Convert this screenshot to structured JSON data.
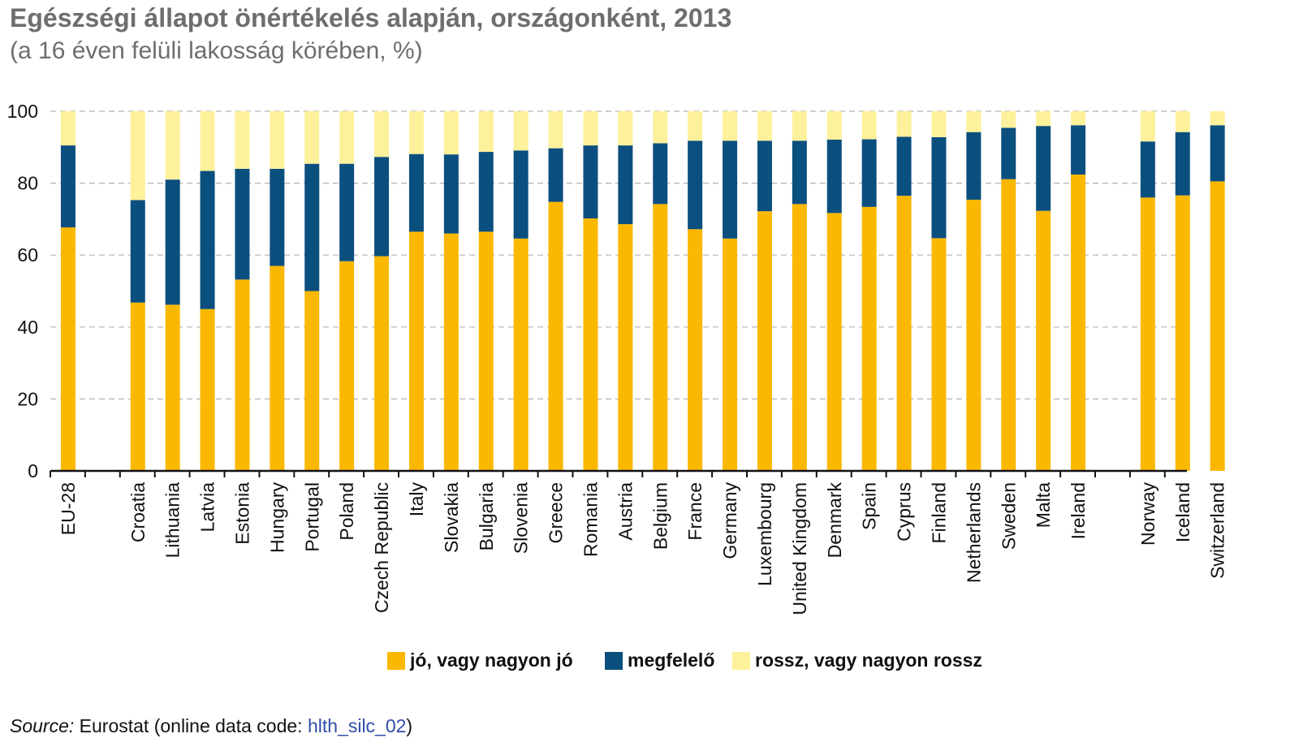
{
  "title": "Egészségi állapot önértékelés alapján, országonként, 2013",
  "subtitle": "(a 16 éven felüli lakosság körében, %)",
  "source": {
    "label": "Source:",
    "text": " Eurostat (online data code: ",
    "code": "hlth_silc_02",
    "close": ")"
  },
  "legend": [
    {
      "name": "jó, vagy nagyon jó",
      "color": "#fbb800"
    },
    {
      "name": "megfelelő",
      "color": "#0b4f7f"
    },
    {
      "name": "rossz, vagy nagyon rossz",
      "color": "#fef19b"
    }
  ],
  "chart_data": {
    "type": "bar",
    "stacked": true,
    "ylim": [
      0,
      100
    ],
    "yticks": [
      0,
      20,
      40,
      60,
      80,
      100
    ],
    "grid": true,
    "legend_position": "bottom",
    "categories": [
      "EU-28",
      "Croatia",
      "Lithuania",
      "Latvia",
      "Estonia",
      "Hungary",
      "Portugal",
      "Poland",
      "Czech Republic",
      "Italy",
      "Slovakia",
      "Bulgaria",
      "Slovenia",
      "Greece",
      "Romania",
      "Austria",
      "Belgium",
      "France",
      "Germany",
      "Luxembourg",
      "United Kingdom",
      "Denmark",
      "Spain",
      "Cyprus",
      "Finland",
      "Netherlands",
      "Sweden",
      "Malta",
      "Ireland",
      "Norway",
      "Iceland",
      "Switzerland"
    ],
    "groups": [
      1,
      28,
      3
    ],
    "series": [
      {
        "name": "jó, vagy nagyon jó",
        "color": "#fbb800",
        "values": [
          67.7,
          46.8,
          46.2,
          45.0,
          53.2,
          57.0,
          50.0,
          58.3,
          59.7,
          66.5,
          66.0,
          66.5,
          64.6,
          74.8,
          70.2,
          68.6,
          74.2,
          67.2,
          64.6,
          72.2,
          74.2,
          71.7,
          73.4,
          76.5,
          64.7,
          75.4,
          81.1,
          72.3,
          82.4,
          76.0,
          76.6,
          80.5
        ]
      },
      {
        "name": "megfelelő",
        "color": "#0b4f7f",
        "values": [
          22.8,
          28.5,
          34.8,
          38.4,
          30.8,
          27.0,
          35.4,
          27.1,
          27.6,
          21.6,
          22.0,
          22.2,
          24.5,
          14.9,
          20.3,
          21.9,
          16.9,
          24.6,
          27.2,
          19.6,
          17.6,
          20.4,
          18.8,
          16.4,
          28.1,
          18.8,
          14.3,
          23.6,
          13.7,
          15.6,
          17.6,
          15.6
        ]
      },
      {
        "name": "rossz, vagy nagyon rossz",
        "color": "#fef19b",
        "values": [
          9.5,
          24.7,
          19.0,
          16.6,
          16.0,
          16.0,
          14.6,
          14.6,
          12.7,
          11.9,
          12.0,
          11.3,
          10.9,
          10.3,
          9.5,
          9.5,
          8.9,
          8.2,
          8.2,
          8.2,
          8.2,
          7.9,
          7.8,
          7.1,
          7.2,
          5.8,
          4.6,
          4.1,
          3.9,
          8.4,
          5.8,
          3.9
        ]
      }
    ]
  }
}
